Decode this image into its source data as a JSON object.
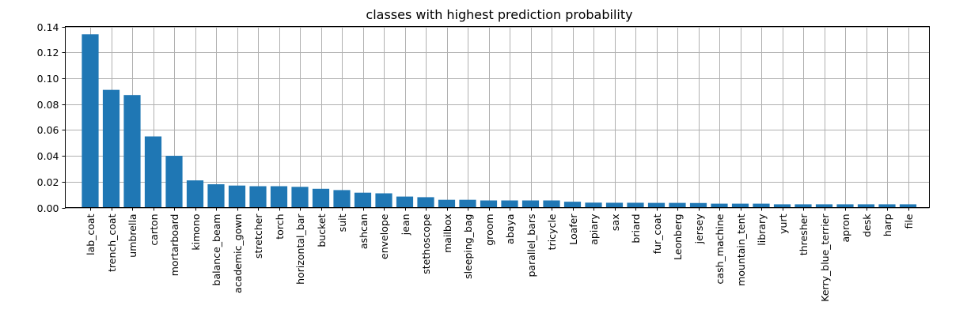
{
  "chart_data": {
    "type": "bar",
    "title": "classes with highest prediction probability",
    "xlabel": "",
    "ylabel": "",
    "ylim": [
      0,
      0.14
    ],
    "yticks": [
      0.0,
      0.02,
      0.04,
      0.06,
      0.08,
      0.1,
      0.12,
      0.14
    ],
    "ytick_labels": [
      "0.00",
      "0.02",
      "0.04",
      "0.06",
      "0.08",
      "0.10",
      "0.12",
      "0.14"
    ],
    "grid": true,
    "bar_color": "#1f77b4",
    "categories": [
      "lab_coat",
      "trench_coat",
      "umbrella",
      "carton",
      "mortarboard",
      "kimono",
      "balance_beam",
      "academic_gown",
      "stretcher",
      "torch",
      "horizontal_bar",
      "bucket",
      "suit",
      "ashcan",
      "envelope",
      "jean",
      "stethoscope",
      "mailbox",
      "sleeping_bag",
      "groom",
      "abaya",
      "parallel_bars",
      "tricycle",
      "Loafer",
      "apiary",
      "sax",
      "briard",
      "fur_coat",
      "Leonberg",
      "jersey",
      "cash_machine",
      "mountain_tent",
      "library",
      "yurt",
      "thresher",
      "Kerry_blue_terrier",
      "apron",
      "desk",
      "harp",
      "file"
    ],
    "values": [
      0.134,
      0.091,
      0.087,
      0.055,
      0.04,
      0.021,
      0.018,
      0.017,
      0.0165,
      0.0165,
      0.016,
      0.0145,
      0.0135,
      0.0115,
      0.011,
      0.0085,
      0.008,
      0.006,
      0.006,
      0.0055,
      0.0055,
      0.0055,
      0.0055,
      0.0045,
      0.0038,
      0.0037,
      0.0037,
      0.0036,
      0.0036,
      0.0035,
      0.003,
      0.003,
      0.003,
      0.0025,
      0.0025,
      0.0025,
      0.0025,
      0.0025,
      0.0025,
      0.0025
    ]
  }
}
